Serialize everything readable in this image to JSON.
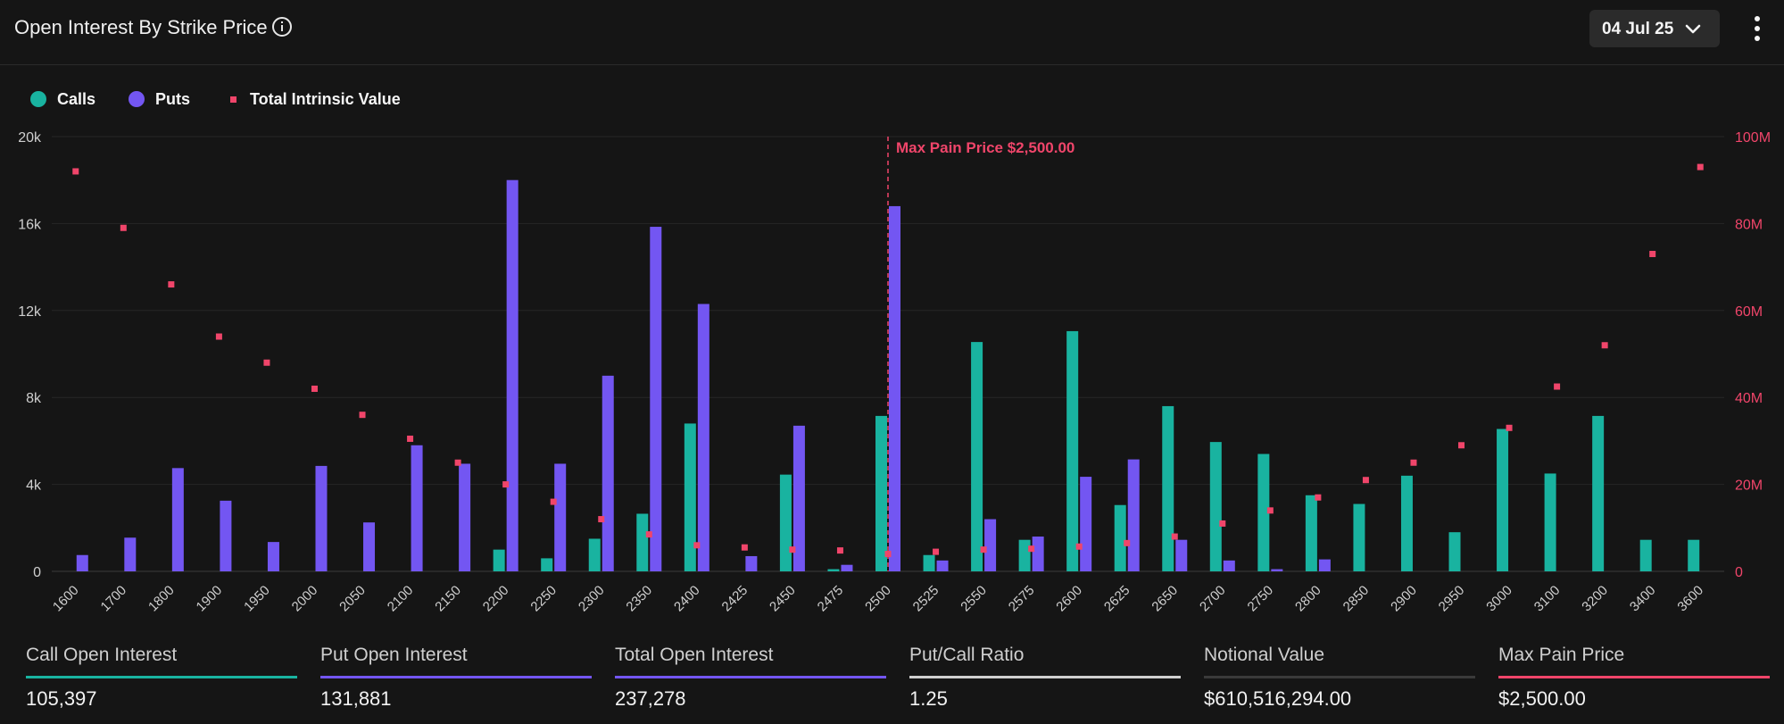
{
  "header": {
    "title": "Open Interest By Strike Price",
    "date_select": "04 Jul 25"
  },
  "legend": {
    "calls": "Calls",
    "puts": "Puts",
    "intrinsic": "Total Intrinsic Value"
  },
  "colors": {
    "calls": "#19b3a0",
    "puts": "#7356f2",
    "intrinsic": "#f0456a",
    "background": "#151515",
    "grid": "#262626"
  },
  "chart_data": {
    "type": "bar",
    "categories": [
      "1600",
      "1700",
      "1800",
      "1900",
      "1950",
      "2000",
      "2050",
      "2100",
      "2150",
      "2200",
      "2250",
      "2300",
      "2350",
      "2400",
      "2425",
      "2450",
      "2475",
      "2500",
      "2525",
      "2550",
      "2575",
      "2600",
      "2625",
      "2650",
      "2700",
      "2750",
      "2800",
      "2850",
      "2900",
      "2950",
      "3000",
      "3100",
      "3200",
      "3400",
      "3600"
    ],
    "series": [
      {
        "name": "Calls",
        "axis": "left",
        "values": [
          0,
          0,
          0,
          0,
          0,
          0,
          0,
          0,
          0,
          1000,
          600,
          1500,
          2650,
          6800,
          0,
          4450,
          100,
          7150,
          750,
          10550,
          1450,
          11050,
          3050,
          7600,
          5950,
          5400,
          3500,
          3100,
          4400,
          1800,
          6550,
          4500,
          7150,
          1450,
          1450
        ]
      },
      {
        "name": "Puts",
        "axis": "left",
        "values": [
          750,
          1550,
          4750,
          3250,
          1350,
          4850,
          2250,
          5800,
          4950,
          18000,
          4950,
          9000,
          15850,
          12300,
          700,
          6700,
          300,
          16800,
          500,
          2400,
          1600,
          4350,
          5150,
          1450,
          500,
          100,
          550,
          0,
          0,
          0,
          0,
          0,
          0,
          0,
          0
        ]
      },
      {
        "name": "Total Intrinsic Value",
        "axis": "right",
        "type": "scatter",
        "values": [
          92000000,
          79000000,
          66000000,
          54000000,
          48000000,
          42000000,
          36000000,
          30500000,
          25000000,
          20000000,
          16000000,
          12000000,
          8500000,
          6000000,
          5500000,
          5000000,
          4800000,
          4000000,
          4500000,
          5000000,
          5200000,
          5700000,
          6500000,
          8000000,
          11000000,
          14000000,
          17000000,
          21000000,
          25000000,
          29000000,
          33000000,
          42500000,
          52000000,
          73000000,
          93000000
        ]
      }
    ],
    "y_left": {
      "ticks": [
        "0",
        "4k",
        "8k",
        "12k",
        "16k",
        "20k"
      ],
      "lim": [
        0,
        20000
      ]
    },
    "y_right": {
      "ticks": [
        "0",
        "20M",
        "40M",
        "60M",
        "80M",
        "100M"
      ],
      "lim": [
        0,
        100000000
      ]
    },
    "annotation": {
      "category": "2500",
      "label": "Max Pain Price $2,500.00"
    },
    "grid": true,
    "legend_position": "top-left"
  },
  "stats": [
    {
      "label": "Call Open Interest",
      "value": "105,397",
      "color": "#19b3a0"
    },
    {
      "label": "Put Open Interest",
      "value": "131,881",
      "color": "#7356f2"
    },
    {
      "label": "Total Open Interest",
      "value": "237,278",
      "color": "#7356f2"
    },
    {
      "label": "Put/Call Ratio",
      "value": "1.25",
      "color": "#cfcfcf"
    },
    {
      "label": "Notional Value",
      "value": "$610,516,294.00",
      "color": "#3a3a3a"
    },
    {
      "label": "Max Pain Price",
      "value": "$2,500.00",
      "color": "#f0456a"
    }
  ]
}
